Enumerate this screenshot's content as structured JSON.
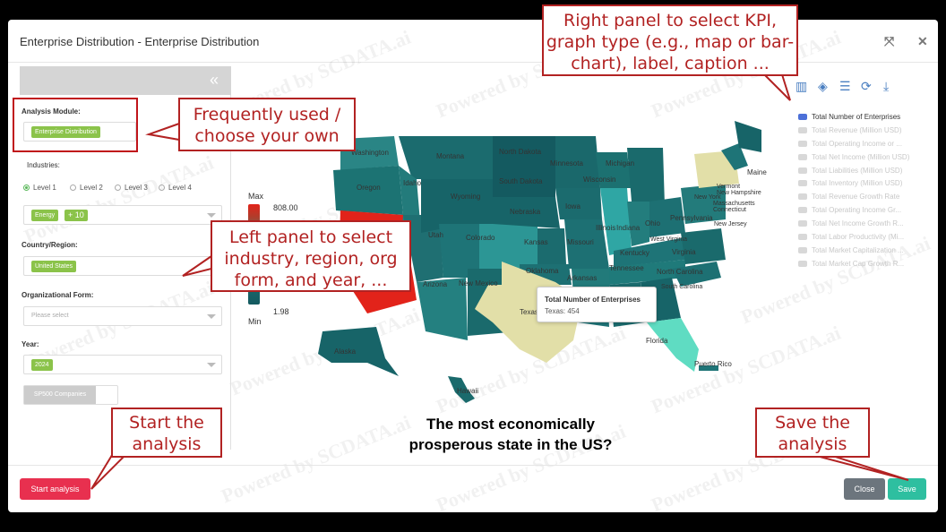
{
  "window": {
    "title": "Enterprise Distribution - Enterprise Distribution"
  },
  "header_icons": [
    "fullscreen-icon",
    "close-icon"
  ],
  "left_panel": {
    "collapse_glyph": "«",
    "analysis_module": {
      "label": "Analysis Module:",
      "value": "Enterprise Distribution"
    },
    "industries": {
      "label": "Industries:",
      "levels": [
        "Level 1",
        "Level 2",
        "Level 3",
        "Level 4"
      ],
      "selected_level": "Level 1",
      "tag": "Energy",
      "more_tag": "+ 10"
    },
    "country": {
      "label": "Country/Region:",
      "value": "United States"
    },
    "org_form": {
      "label": "Organizational Form:",
      "placeholder": "Please select"
    },
    "year": {
      "label": "Year:",
      "value": "2024"
    },
    "sp500": {
      "label": "SP500 Companies"
    }
  },
  "map": {
    "legend_max_label": "Max",
    "legend_max_value": "808.00",
    "legend_min_label": "Min",
    "legend_min_value": "1.98",
    "state_labels": [
      "Washington",
      "Montana",
      "North Dakota",
      "Minnesota",
      "Michigan",
      "Maine",
      "Oregon",
      "Idaho",
      "South Dakota",
      "Wisconsin",
      "Vermont",
      "New Hampshire",
      "New York",
      "Massachusetts",
      "Wyoming",
      "Iowa",
      "Nebraska",
      "Pennsylvania",
      "Connecticut",
      "New Jersey",
      "Illinois",
      "Indiana",
      "Ohio",
      "Utah",
      "Colorado",
      "Kansas",
      "Missouri",
      "West Virginia",
      "Virginia",
      "Kentucky",
      "Tennessee",
      "North Carolina",
      "Oklahoma",
      "Arkansas",
      "South Carolina",
      "Arizona",
      "New Mexico",
      "Texas",
      "Florida",
      "Alaska",
      "Hawaii",
      "Puerto Rico"
    ],
    "tooltip": {
      "title": "Total Number of Enterprises",
      "text": "Texas: 454"
    }
  },
  "toolbar_icons": [
    "bar-chart-icon",
    "tag-icon",
    "table-icon",
    "refresh-icon",
    "download-icon"
  ],
  "kpis": [
    "Total Number of Enterprises",
    "Total Revenue (Million USD)",
    "Total Operating Income or ...",
    "Total Net Income (Million USD)",
    "Total Liabilities (Million USD)",
    "Total Inventory (Million USD)",
    "Total Revenue Growth Rate",
    "Total Operating Income Gr...",
    "Total Net Income Growth R...",
    "Total Labor Productivity (Mi...",
    "Total Market Capitalization ...",
    "Total Market Cap Growth R..."
  ],
  "selected_kpi": "Total Number of Enterprises",
  "caption": {
    "line1": "The most economically",
    "line2": "prosperous state in the US?"
  },
  "footer": {
    "start": "Start analysis",
    "close": "Close",
    "save": "Save"
  },
  "annotations": {
    "kpi": "Right panel to select KPI, graph type (e.g., map or bar-chart), label, caption ...",
    "module": "Frequently used / choose your own",
    "left": "Left panel to select industry, region, org form, and year, ...",
    "start": "Start the analysis",
    "save": "Save the analysis"
  },
  "watermark": "Powered by SCDATA.ai",
  "colors": {
    "accent_green": "#8bc34a",
    "start_button": "#e8304f",
    "save_button": "#2ebfa0",
    "close_button": "#6c757d",
    "annotation_red": "#b22222",
    "map_dark": "#145a60",
    "map_mid": "#1f7a7d",
    "map_light": "#e2dfa8",
    "map_max": "#e2231a"
  }
}
